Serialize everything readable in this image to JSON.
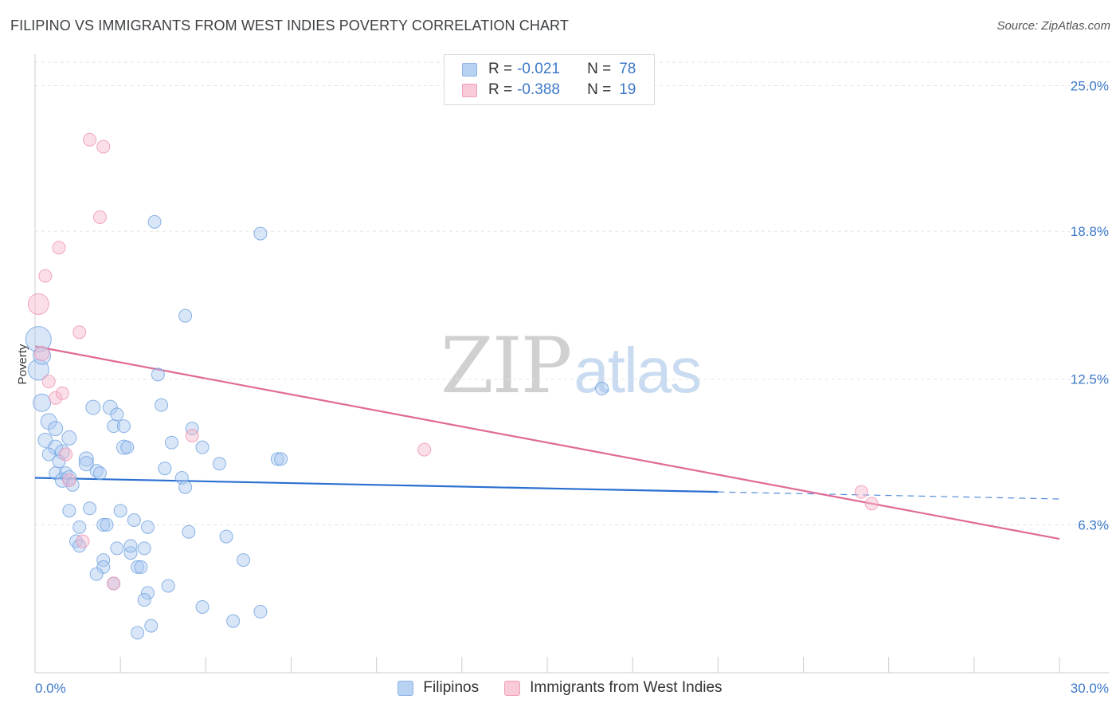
{
  "title": "FILIPINO VS IMMIGRANTS FROM WEST INDIES POVERTY CORRELATION CHART",
  "source": "Source: ZipAtlas.com",
  "watermark": {
    "zip": "ZIP",
    "atlas": "atlas"
  },
  "legend": {
    "rows": [
      {
        "r_label": "R =",
        "r_value": "-0.021",
        "n_label": "N =",
        "n_value": "78",
        "color": "#a9c8f0"
      },
      {
        "r_label": "R =",
        "r_value": "-0.388",
        "n_label": "N =",
        "n_value": "19",
        "color": "#f6b8cb"
      }
    ]
  },
  "bottom_legend": [
    {
      "label": "Filipinos",
      "color": "#a9c8f0"
    },
    {
      "label": "Immigrants from West Indies",
      "color": "#f6b8cb"
    }
  ],
  "chart_data": {
    "type": "scatter",
    "title": "FILIPINO VS IMMIGRANTS FROM WEST INDIES POVERTY CORRELATION CHART",
    "xlabel": "",
    "ylabel": "Poverty",
    "xlim": [
      0,
      30
    ],
    "ylim": [
      0,
      26.0
    ],
    "x_tick_labels": [
      "0.0%",
      "30.0%"
    ],
    "y_ticks": [
      6.3,
      12.5,
      18.8,
      25.0
    ],
    "y_tick_labels": [
      "6.3%",
      "12.5%",
      "18.8%",
      "25.0%"
    ],
    "grid": true,
    "legend_position": "top-center",
    "series": [
      {
        "name": "Filipinos",
        "color": "#6fa1e0",
        "fill": "#a9c8f0",
        "trend": {
          "x": [
            0,
            20.0
          ],
          "y": [
            8.3,
            7.7
          ],
          "dashed_to": [
            30,
            7.4
          ],
          "color": "#2a6fd0"
        },
        "points": [
          {
            "x": 0.1,
            "y": 14.2,
            "s": 16
          },
          {
            "x": 0.1,
            "y": 12.9,
            "s": 13
          },
          {
            "x": 0.2,
            "y": 13.5,
            "s": 11
          },
          {
            "x": 0.2,
            "y": 11.5,
            "s": 11
          },
          {
            "x": 0.4,
            "y": 10.7,
            "s": 10
          },
          {
            "x": 0.3,
            "y": 9.9,
            "s": 9
          },
          {
            "x": 0.6,
            "y": 10.4,
            "s": 9
          },
          {
            "x": 1.0,
            "y": 10.0,
            "s": 9
          },
          {
            "x": 0.6,
            "y": 9.6,
            "s": 9
          },
          {
            "x": 0.8,
            "y": 9.4,
            "s": 9
          },
          {
            "x": 0.4,
            "y": 9.3,
            "s": 8
          },
          {
            "x": 0.7,
            "y": 9.0,
            "s": 8
          },
          {
            "x": 1.5,
            "y": 9.1,
            "s": 9
          },
          {
            "x": 1.5,
            "y": 8.9,
            "s": 9
          },
          {
            "x": 0.6,
            "y": 8.5,
            "s": 8
          },
          {
            "x": 0.9,
            "y": 8.5,
            "s": 8
          },
          {
            "x": 1.8,
            "y": 8.6,
            "s": 8
          },
          {
            "x": 1.9,
            "y": 8.5,
            "s": 8
          },
          {
            "x": 0.8,
            "y": 8.2,
            "s": 9
          },
          {
            "x": 1.0,
            "y": 8.3,
            "s": 9
          },
          {
            "x": 1.1,
            "y": 8.0,
            "s": 8
          },
          {
            "x": 1.7,
            "y": 11.3,
            "s": 9
          },
          {
            "x": 2.2,
            "y": 11.3,
            "s": 9
          },
          {
            "x": 2.4,
            "y": 11.0,
            "s": 8
          },
          {
            "x": 2.3,
            "y": 10.5,
            "s": 8
          },
          {
            "x": 2.6,
            "y": 10.5,
            "s": 8
          },
          {
            "x": 2.6,
            "y": 9.6,
            "s": 9
          },
          {
            "x": 2.7,
            "y": 9.6,
            "s": 8
          },
          {
            "x": 3.6,
            "y": 12.7,
            "s": 8
          },
          {
            "x": 3.7,
            "y": 11.4,
            "s": 8
          },
          {
            "x": 3.5,
            "y": 19.2,
            "s": 8
          },
          {
            "x": 6.6,
            "y": 18.7,
            "s": 8
          },
          {
            "x": 4.4,
            "y": 15.2,
            "s": 8
          },
          {
            "x": 4.0,
            "y": 9.8,
            "s": 8
          },
          {
            "x": 4.6,
            "y": 10.4,
            "s": 8
          },
          {
            "x": 4.9,
            "y": 9.6,
            "s": 8
          },
          {
            "x": 3.8,
            "y": 8.7,
            "s": 8
          },
          {
            "x": 4.3,
            "y": 8.3,
            "s": 8
          },
          {
            "x": 4.4,
            "y": 7.9,
            "s": 8
          },
          {
            "x": 5.4,
            "y": 8.9,
            "s": 8
          },
          {
            "x": 7.1,
            "y": 9.1,
            "s": 8
          },
          {
            "x": 7.2,
            "y": 9.1,
            "s": 8
          },
          {
            "x": 1.0,
            "y": 6.9,
            "s": 8
          },
          {
            "x": 1.6,
            "y": 7.0,
            "s": 8
          },
          {
            "x": 2.5,
            "y": 6.9,
            "s": 8
          },
          {
            "x": 1.3,
            "y": 6.2,
            "s": 8
          },
          {
            "x": 2.0,
            "y": 6.3,
            "s": 8
          },
          {
            "x": 2.1,
            "y": 6.3,
            "s": 8
          },
          {
            "x": 2.9,
            "y": 6.5,
            "s": 8
          },
          {
            "x": 3.3,
            "y": 6.2,
            "s": 8
          },
          {
            "x": 4.5,
            "y": 6.0,
            "s": 8
          },
          {
            "x": 5.6,
            "y": 5.8,
            "s": 8
          },
          {
            "x": 1.2,
            "y": 5.6,
            "s": 8
          },
          {
            "x": 1.3,
            "y": 5.4,
            "s": 8
          },
          {
            "x": 2.4,
            "y": 5.3,
            "s": 8
          },
          {
            "x": 2.8,
            "y": 5.1,
            "s": 8
          },
          {
            "x": 2.8,
            "y": 5.4,
            "s": 8
          },
          {
            "x": 3.2,
            "y": 5.3,
            "s": 8
          },
          {
            "x": 2.0,
            "y": 4.8,
            "s": 8
          },
          {
            "x": 2.0,
            "y": 4.5,
            "s": 8
          },
          {
            "x": 3.0,
            "y": 4.5,
            "s": 8
          },
          {
            "x": 3.1,
            "y": 4.5,
            "s": 8
          },
          {
            "x": 6.1,
            "y": 4.8,
            "s": 8
          },
          {
            "x": 1.8,
            "y": 4.2,
            "s": 8
          },
          {
            "x": 2.3,
            "y": 3.8,
            "s": 8
          },
          {
            "x": 3.9,
            "y": 3.7,
            "s": 8
          },
          {
            "x": 3.3,
            "y": 3.4,
            "s": 8
          },
          {
            "x": 3.2,
            "y": 3.1,
            "s": 8
          },
          {
            "x": 4.9,
            "y": 2.8,
            "s": 8
          },
          {
            "x": 6.6,
            "y": 2.6,
            "s": 8
          },
          {
            "x": 5.8,
            "y": 2.2,
            "s": 8
          },
          {
            "x": 3.4,
            "y": 2.0,
            "s": 8
          },
          {
            "x": 3.0,
            "y": 1.7,
            "s": 8
          },
          {
            "x": 16.6,
            "y": 12.1,
            "s": 8
          }
        ]
      },
      {
        "name": "Immigrants from West Indies",
        "color": "#ef94b0",
        "fill": "#f6b8cb",
        "trend": {
          "x": [
            0,
            30
          ],
          "y": [
            13.9,
            5.7
          ],
          "color": "#e06a95"
        },
        "points": [
          {
            "x": 1.6,
            "y": 22.7,
            "s": 8
          },
          {
            "x": 2.0,
            "y": 22.4,
            "s": 8
          },
          {
            "x": 1.9,
            "y": 19.4,
            "s": 8
          },
          {
            "x": 0.7,
            "y": 18.1,
            "s": 8
          },
          {
            "x": 0.3,
            "y": 16.9,
            "s": 8
          },
          {
            "x": 0.1,
            "y": 15.7,
            "s": 13
          },
          {
            "x": 1.3,
            "y": 14.5,
            "s": 8
          },
          {
            "x": 0.2,
            "y": 13.6,
            "s": 9
          },
          {
            "x": 0.4,
            "y": 12.4,
            "s": 8
          },
          {
            "x": 0.6,
            "y": 11.7,
            "s": 8
          },
          {
            "x": 0.8,
            "y": 11.9,
            "s": 8
          },
          {
            "x": 4.6,
            "y": 10.1,
            "s": 8
          },
          {
            "x": 0.9,
            "y": 9.3,
            "s": 8
          },
          {
            "x": 11.4,
            "y": 9.5,
            "s": 8
          },
          {
            "x": 1.0,
            "y": 8.2,
            "s": 8
          },
          {
            "x": 1.4,
            "y": 5.6,
            "s": 8
          },
          {
            "x": 2.3,
            "y": 3.8,
            "s": 8
          },
          {
            "x": 24.2,
            "y": 7.7,
            "s": 8
          },
          {
            "x": 24.5,
            "y": 7.2,
            "s": 8
          }
        ]
      }
    ]
  }
}
